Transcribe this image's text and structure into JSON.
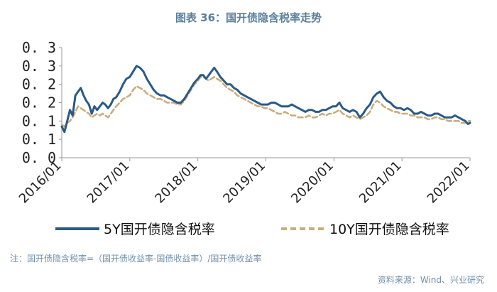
{
  "title": "图表 36：国开债隐含税率走势",
  "footnote": "注：国开债隐含税率=（国开债收益率-国债收益率）/国开债收益率",
  "source": "资料来源：Wind、兴业研究",
  "chart_data": {
    "type": "line",
    "title": "图表 36：国开债隐含税率走势",
    "xlabel": "",
    "ylabel": "",
    "x_ticks": [
      "2016/01",
      "2017/01",
      "2018/01",
      "2019/01",
      "2020/01",
      "2021/01",
      "2022/01"
    ],
    "x_range": [
      2016.0,
      2022.0
    ],
    "y_tick_labels": [
      "0. 0",
      "0. 1",
      "0. 1",
      "0. 2",
      "0. 2",
      "0. 3",
      "0. 3"
    ],
    "ylim": [
      0.0,
      0.3
    ],
    "legend_position": "bottom",
    "colors": {
      "s5y": "#2b5a86",
      "s10y": "#c9ad7e",
      "title": "#5a7f9a",
      "note": "#6f8faa"
    },
    "series": [
      {
        "name": "5Y国开债隐含税率",
        "style": "solid",
        "points": [
          [
            2016.0,
            0.085
          ],
          [
            2016.04,
            0.07
          ],
          [
            2016.08,
            0.1
          ],
          [
            2016.12,
            0.13
          ],
          [
            2016.16,
            0.115
          ],
          [
            2016.2,
            0.17
          ],
          [
            2016.24,
            0.18
          ],
          [
            2016.28,
            0.19
          ],
          [
            2016.32,
            0.17
          ],
          [
            2016.36,
            0.155
          ],
          [
            2016.4,
            0.145
          ],
          [
            2016.44,
            0.12
          ],
          [
            2016.48,
            0.14
          ],
          [
            2016.52,
            0.13
          ],
          [
            2016.56,
            0.14
          ],
          [
            2016.6,
            0.15
          ],
          [
            2016.64,
            0.145
          ],
          [
            2016.68,
            0.135
          ],
          [
            2016.72,
            0.145
          ],
          [
            2016.76,
            0.16
          ],
          [
            2016.8,
            0.165
          ],
          [
            2016.85,
            0.18
          ],
          [
            2016.9,
            0.2
          ],
          [
            2016.95,
            0.215
          ],
          [
            2017.0,
            0.22
          ],
          [
            2017.05,
            0.235
          ],
          [
            2017.1,
            0.25
          ],
          [
            2017.15,
            0.245
          ],
          [
            2017.2,
            0.235
          ],
          [
            2017.25,
            0.215
          ],
          [
            2017.3,
            0.2
          ],
          [
            2017.35,
            0.185
          ],
          [
            2017.4,
            0.175
          ],
          [
            2017.45,
            0.17
          ],
          [
            2017.5,
            0.17
          ],
          [
            2017.55,
            0.165
          ],
          [
            2017.6,
            0.16
          ],
          [
            2017.65,
            0.155
          ],
          [
            2017.7,
            0.15
          ],
          [
            2017.75,
            0.15
          ],
          [
            2017.8,
            0.16
          ],
          [
            2017.85,
            0.175
          ],
          [
            2017.9,
            0.19
          ],
          [
            2017.95,
            0.205
          ],
          [
            2018.0,
            0.215
          ],
          [
            2018.04,
            0.225
          ],
          [
            2018.08,
            0.225
          ],
          [
            2018.12,
            0.215
          ],
          [
            2018.16,
            0.225
          ],
          [
            2018.2,
            0.235
          ],
          [
            2018.24,
            0.245
          ],
          [
            2018.28,
            0.235
          ],
          [
            2018.33,
            0.22
          ],
          [
            2018.38,
            0.21
          ],
          [
            2018.43,
            0.2
          ],
          [
            2018.48,
            0.2
          ],
          [
            2018.53,
            0.19
          ],
          [
            2018.58,
            0.185
          ],
          [
            2018.63,
            0.175
          ],
          [
            2018.68,
            0.17
          ],
          [
            2018.73,
            0.165
          ],
          [
            2018.78,
            0.16
          ],
          [
            2018.83,
            0.155
          ],
          [
            2018.88,
            0.15
          ],
          [
            2018.93,
            0.145
          ],
          [
            2018.98,
            0.145
          ],
          [
            2019.03,
            0.145
          ],
          [
            2019.08,
            0.15
          ],
          [
            2019.13,
            0.15
          ],
          [
            2019.18,
            0.145
          ],
          [
            2019.23,
            0.14
          ],
          [
            2019.28,
            0.14
          ],
          [
            2019.33,
            0.14
          ],
          [
            2019.38,
            0.145
          ],
          [
            2019.43,
            0.14
          ],
          [
            2019.48,
            0.135
          ],
          [
            2019.53,
            0.13
          ],
          [
            2019.58,
            0.125
          ],
          [
            2019.63,
            0.13
          ],
          [
            2019.68,
            0.13
          ],
          [
            2019.73,
            0.125
          ],
          [
            2019.78,
            0.125
          ],
          [
            2019.83,
            0.13
          ],
          [
            2019.88,
            0.13
          ],
          [
            2019.93,
            0.135
          ],
          [
            2019.98,
            0.14
          ],
          [
            2020.03,
            0.14
          ],
          [
            2020.08,
            0.15
          ],
          [
            2020.13,
            0.135
          ],
          [
            2020.18,
            0.13
          ],
          [
            2020.23,
            0.125
          ],
          [
            2020.28,
            0.13
          ],
          [
            2020.33,
            0.125
          ],
          [
            2020.38,
            0.11
          ],
          [
            2020.43,
            0.12
          ],
          [
            2020.48,
            0.135
          ],
          [
            2020.53,
            0.145
          ],
          [
            2020.58,
            0.165
          ],
          [
            2020.63,
            0.175
          ],
          [
            2020.68,
            0.18
          ],
          [
            2020.73,
            0.165
          ],
          [
            2020.78,
            0.155
          ],
          [
            2020.83,
            0.15
          ],
          [
            2020.88,
            0.14
          ],
          [
            2020.93,
            0.135
          ],
          [
            2020.98,
            0.135
          ],
          [
            2021.03,
            0.13
          ],
          [
            2021.08,
            0.135
          ],
          [
            2021.13,
            0.13
          ],
          [
            2021.18,
            0.12
          ],
          [
            2021.23,
            0.12
          ],
          [
            2021.28,
            0.125
          ],
          [
            2021.33,
            0.12
          ],
          [
            2021.38,
            0.115
          ],
          [
            2021.43,
            0.115
          ],
          [
            2021.48,
            0.12
          ],
          [
            2021.53,
            0.12
          ],
          [
            2021.58,
            0.115
          ],
          [
            2021.63,
            0.11
          ],
          [
            2021.68,
            0.11
          ],
          [
            2021.73,
            0.11
          ],
          [
            2021.78,
            0.115
          ],
          [
            2021.83,
            0.11
          ],
          [
            2021.88,
            0.105
          ],
          [
            2021.93,
            0.1
          ],
          [
            2021.97,
            0.092
          ],
          [
            2022.0,
            0.095
          ]
        ]
      },
      {
        "name": "10Y国开债隐含税率",
        "style": "dashed",
        "points": [
          [
            2016.0,
            0.09
          ],
          [
            2016.04,
            0.085
          ],
          [
            2016.08,
            0.095
          ],
          [
            2016.12,
            0.1
          ],
          [
            2016.16,
            0.11
          ],
          [
            2016.2,
            0.125
          ],
          [
            2016.24,
            0.14
          ],
          [
            2016.28,
            0.135
          ],
          [
            2016.32,
            0.13
          ],
          [
            2016.36,
            0.125
          ],
          [
            2016.4,
            0.12
          ],
          [
            2016.44,
            0.11
          ],
          [
            2016.48,
            0.115
          ],
          [
            2016.52,
            0.12
          ],
          [
            2016.56,
            0.115
          ],
          [
            2016.6,
            0.12
          ],
          [
            2016.64,
            0.115
          ],
          [
            2016.68,
            0.11
          ],
          [
            2016.72,
            0.12
          ],
          [
            2016.76,
            0.13
          ],
          [
            2016.8,
            0.14
          ],
          [
            2016.85,
            0.15
          ],
          [
            2016.9,
            0.16
          ],
          [
            2016.95,
            0.165
          ],
          [
            2017.0,
            0.17
          ],
          [
            2017.05,
            0.185
          ],
          [
            2017.1,
            0.195
          ],
          [
            2017.15,
            0.19
          ],
          [
            2017.2,
            0.185
          ],
          [
            2017.25,
            0.175
          ],
          [
            2017.3,
            0.17
          ],
          [
            2017.35,
            0.165
          ],
          [
            2017.4,
            0.16
          ],
          [
            2017.45,
            0.16
          ],
          [
            2017.5,
            0.155
          ],
          [
            2017.55,
            0.15
          ],
          [
            2017.6,
            0.15
          ],
          [
            2017.65,
            0.15
          ],
          [
            2017.7,
            0.145
          ],
          [
            2017.75,
            0.145
          ],
          [
            2017.8,
            0.155
          ],
          [
            2017.85,
            0.17
          ],
          [
            2017.9,
            0.185
          ],
          [
            2017.95,
            0.2
          ],
          [
            2018.0,
            0.21
          ],
          [
            2018.04,
            0.22
          ],
          [
            2018.08,
            0.22
          ],
          [
            2018.12,
            0.215
          ],
          [
            2018.16,
            0.21
          ],
          [
            2018.2,
            0.215
          ],
          [
            2018.24,
            0.22
          ],
          [
            2018.28,
            0.215
          ],
          [
            2018.33,
            0.21
          ],
          [
            2018.38,
            0.2
          ],
          [
            2018.43,
            0.19
          ],
          [
            2018.48,
            0.185
          ],
          [
            2018.53,
            0.18
          ],
          [
            2018.58,
            0.17
          ],
          [
            2018.63,
            0.165
          ],
          [
            2018.68,
            0.16
          ],
          [
            2018.73,
            0.155
          ],
          [
            2018.78,
            0.15
          ],
          [
            2018.83,
            0.145
          ],
          [
            2018.88,
            0.14
          ],
          [
            2018.93,
            0.14
          ],
          [
            2018.98,
            0.135
          ],
          [
            2019.03,
            0.135
          ],
          [
            2019.08,
            0.13
          ],
          [
            2019.13,
            0.125
          ],
          [
            2019.18,
            0.12
          ],
          [
            2019.23,
            0.12
          ],
          [
            2019.28,
            0.125
          ],
          [
            2019.33,
            0.12
          ],
          [
            2019.38,
            0.115
          ],
          [
            2019.43,
            0.115
          ],
          [
            2019.48,
            0.11
          ],
          [
            2019.53,
            0.11
          ],
          [
            2019.58,
            0.11
          ],
          [
            2019.63,
            0.115
          ],
          [
            2019.68,
            0.11
          ],
          [
            2019.73,
            0.11
          ],
          [
            2019.78,
            0.115
          ],
          [
            2019.83,
            0.12
          ],
          [
            2019.88,
            0.115
          ],
          [
            2019.93,
            0.12
          ],
          [
            2019.98,
            0.12
          ],
          [
            2020.03,
            0.125
          ],
          [
            2020.08,
            0.13
          ],
          [
            2020.13,
            0.12
          ],
          [
            2020.18,
            0.115
          ],
          [
            2020.23,
            0.11
          ],
          [
            2020.28,
            0.115
          ],
          [
            2020.33,
            0.11
          ],
          [
            2020.38,
            0.105
          ],
          [
            2020.43,
            0.11
          ],
          [
            2020.48,
            0.115
          ],
          [
            2020.53,
            0.125
          ],
          [
            2020.58,
            0.145
          ],
          [
            2020.63,
            0.155
          ],
          [
            2020.68,
            0.15
          ],
          [
            2020.73,
            0.14
          ],
          [
            2020.78,
            0.135
          ],
          [
            2020.83,
            0.13
          ],
          [
            2020.88,
            0.125
          ],
          [
            2020.93,
            0.125
          ],
          [
            2020.98,
            0.12
          ],
          [
            2021.03,
            0.12
          ],
          [
            2021.08,
            0.12
          ],
          [
            2021.13,
            0.115
          ],
          [
            2021.18,
            0.115
          ],
          [
            2021.23,
            0.11
          ],
          [
            2021.28,
            0.11
          ],
          [
            2021.33,
            0.11
          ],
          [
            2021.38,
            0.105
          ],
          [
            2021.43,
            0.105
          ],
          [
            2021.48,
            0.11
          ],
          [
            2021.53,
            0.11
          ],
          [
            2021.58,
            0.105
          ],
          [
            2021.63,
            0.105
          ],
          [
            2021.68,
            0.1
          ],
          [
            2021.73,
            0.1
          ],
          [
            2021.78,
            0.1
          ],
          [
            2021.83,
            0.1
          ],
          [
            2021.88,
            0.095
          ],
          [
            2021.93,
            0.095
          ],
          [
            2021.97,
            0.1
          ],
          [
            2022.0,
            0.1
          ]
        ]
      }
    ]
  }
}
